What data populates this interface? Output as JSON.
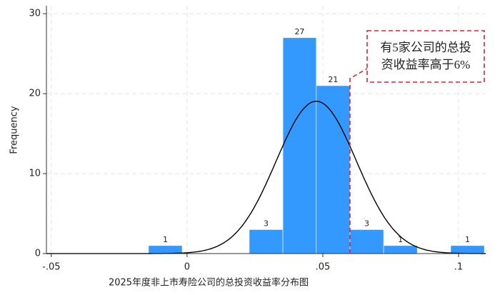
{
  "chart_data": {
    "type": "histogram",
    "x_label": "2025年度非上市寿险公司的总投资收益率分布图",
    "y_label": "Frequency",
    "bins": [
      -0.0142,
      -0.0018,
      0.0105,
      0.0229,
      0.0353,
      0.0476,
      0.06,
      0.0724,
      0.0848,
      0.0971,
      0.1095
    ],
    "counts": [
      1,
      0,
      0,
      3,
      27,
      21,
      3,
      1,
      0,
      1
    ],
    "color": "#3399ff",
    "curve": {
      "mean": 0.0476,
      "sd": 0.0148,
      "color": "#000000"
    },
    "xlim": [
      -0.0518,
      0.11
    ],
    "ylim": [
      0,
      31
    ],
    "xticks": [
      {
        "value": -0.05,
        "label": "-.05"
      },
      0,
      {
        "value": 0.05,
        "label": ".05"
      },
      {
        "value": 0.1,
        "label": ".1"
      }
    ],
    "yticks": [
      0,
      10,
      20,
      30
    ],
    "grid": true,
    "annotation": {
      "lines": [
        "有5家公司的总投",
        "资收益率高于6%"
      ],
      "x": 0.06,
      "color": "#e8202a"
    }
  }
}
